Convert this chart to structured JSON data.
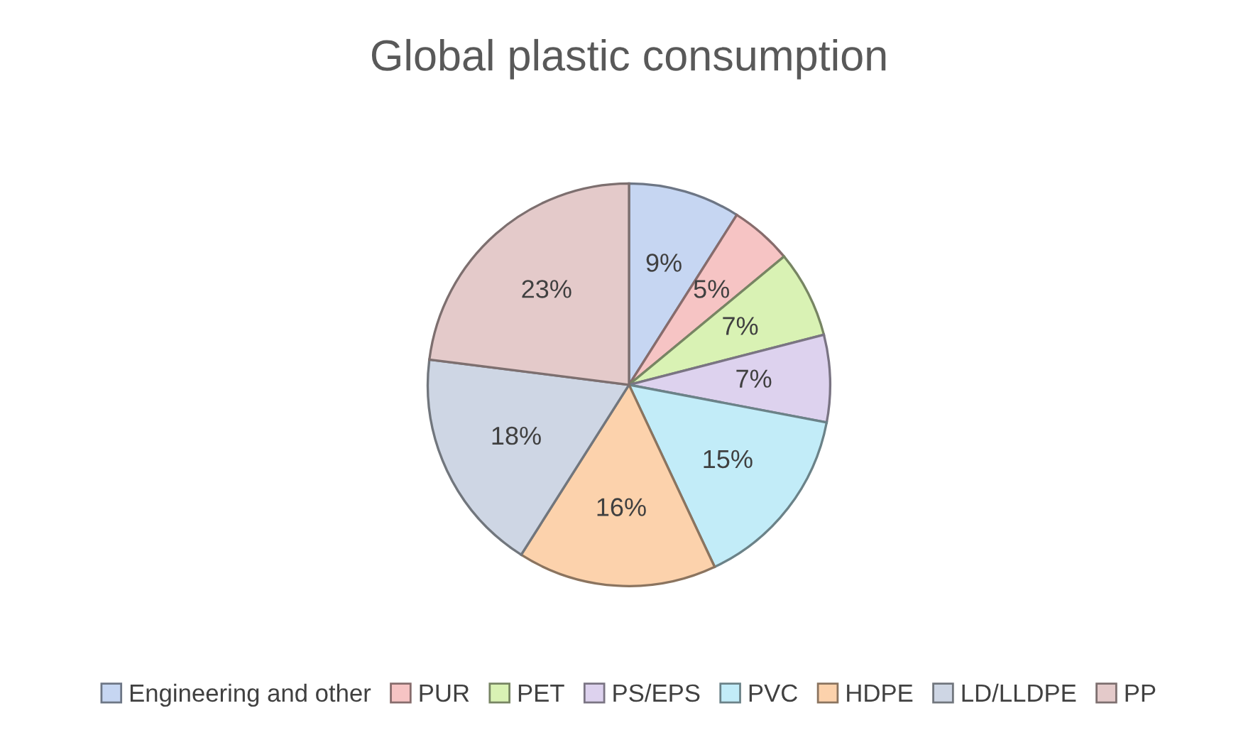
{
  "chart_data": {
    "type": "pie",
    "title": "Global plastic consumption",
    "categories": [
      "Engineering and other",
      "PUR",
      "PET",
      "PS/EPS",
      "PVC",
      "HDPE",
      "LD/LLDPE",
      "PP"
    ],
    "values": [
      9,
      5,
      7,
      7,
      15,
      16,
      18,
      23
    ],
    "colors": [
      "#c6d6f2",
      "#f6c4c4",
      "#d9f2b4",
      "#ddd2ee",
      "#c2ecf8",
      "#fcd2ac",
      "#ced6e4",
      "#e4caca"
    ],
    "value_labels": [
      "9%",
      "5%",
      "7%",
      "7%",
      "15%",
      "16%",
      "18%",
      "23%"
    ],
    "legend": "bottom"
  }
}
